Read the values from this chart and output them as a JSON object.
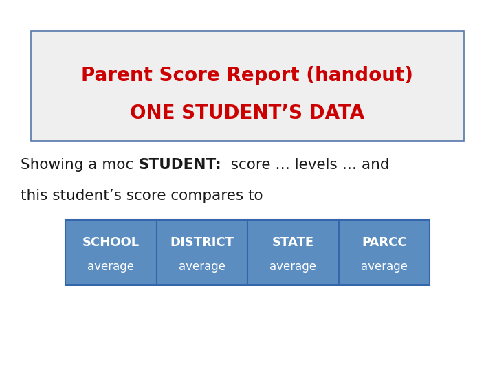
{
  "title_line1": "Parent Score Report (handout)",
  "title_line2": "ONE STUDENT’S DATA",
  "title_color": "#cc0000",
  "title_bg_color": "#efefef",
  "title_border_color": "#5577aa",
  "body_text_normal": "Showing a moc ",
  "body_text_bold": "STUDENT:",
  "body_text_rest": "  score … levels … and",
  "body_text_line2": "this student’s score compares to",
  "table_headers": [
    "SCHOOL",
    "DISTRICT",
    "STATE",
    "PARCC"
  ],
  "table_subheaders": [
    "average",
    "average",
    "average",
    "average"
  ],
  "table_bg_color": "#5b8dc0",
  "table_text_color": "#ffffff",
  "table_border_color": "#3366aa",
  "background_color": "#ffffff",
  "body_text_color": "#1a1a1a",
  "body_fontsize": 15.5,
  "title_fontsize": 20
}
